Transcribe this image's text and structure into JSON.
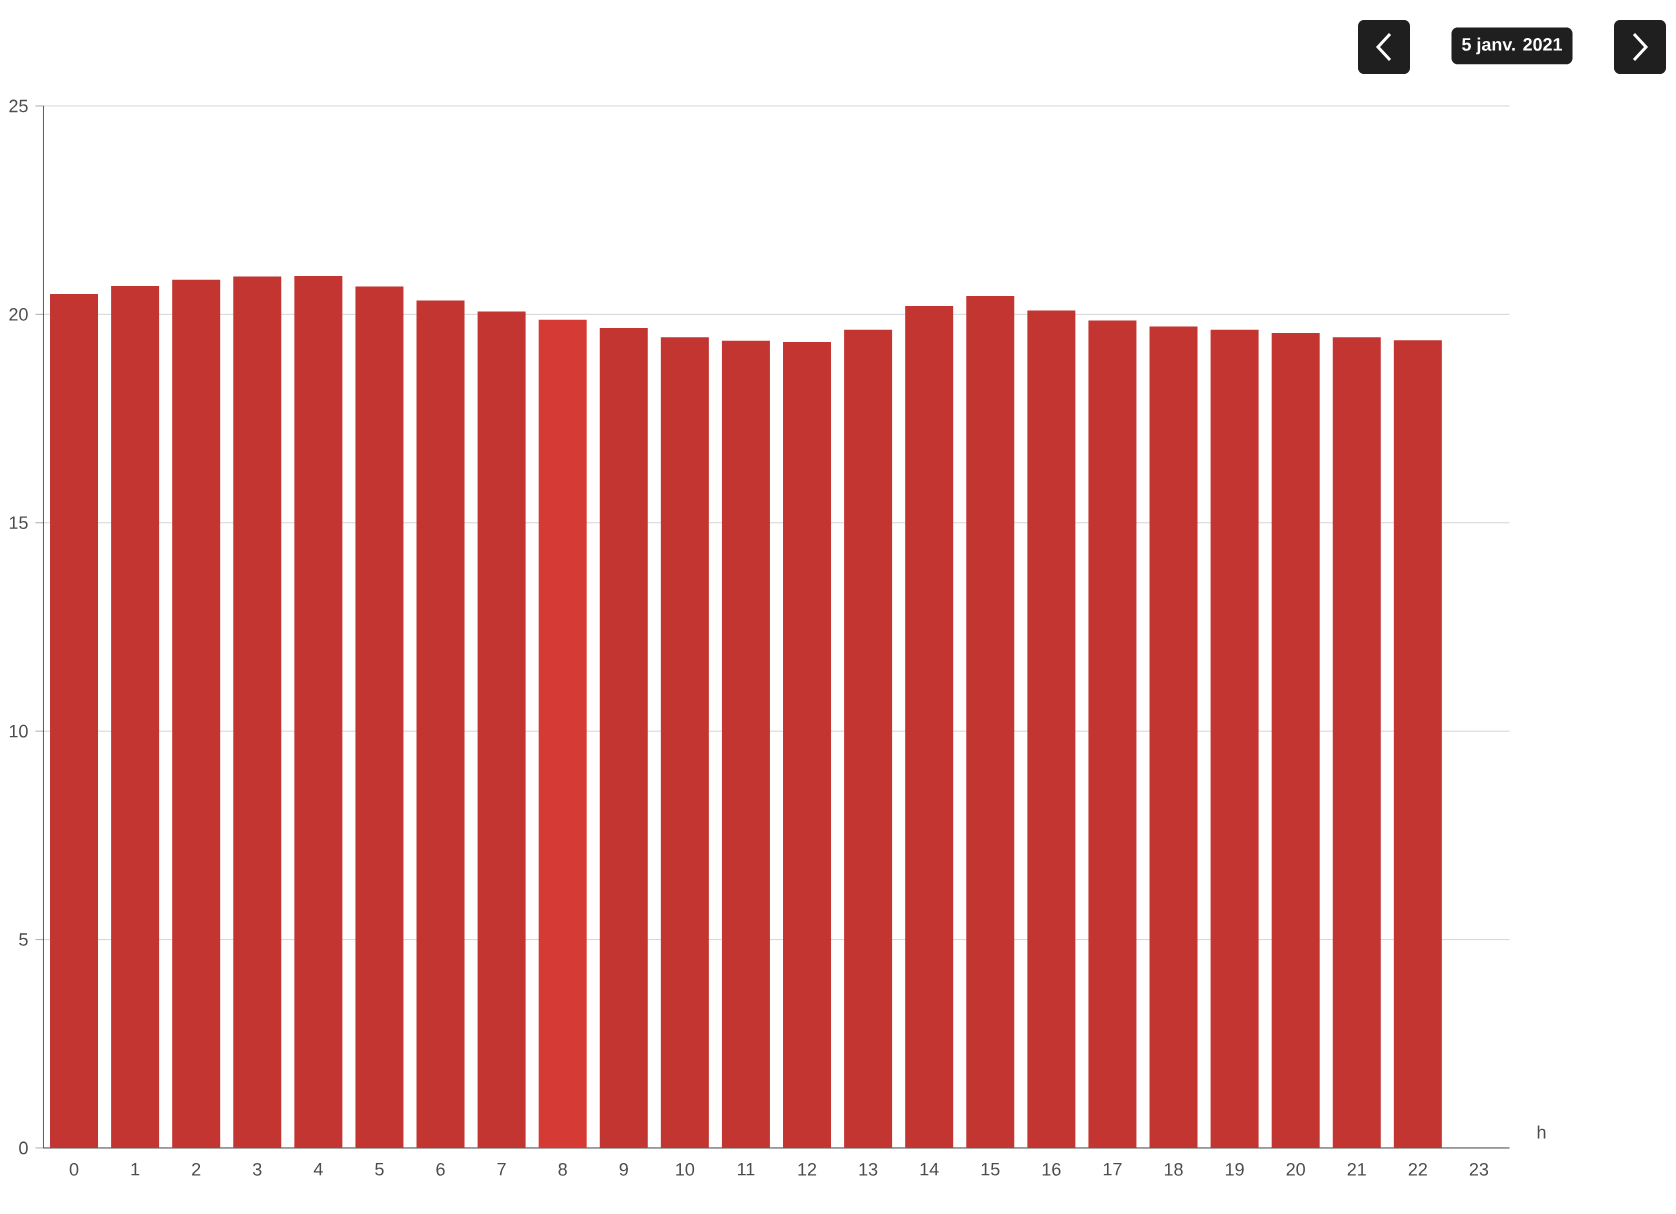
{
  "chart_data": {
    "type": "bar",
    "categories": [
      "0",
      "1",
      "2",
      "3",
      "4",
      "5",
      "6",
      "7",
      "8",
      "9",
      "10",
      "11",
      "12",
      "13",
      "14",
      "15",
      "16",
      "17",
      "18",
      "19",
      "20",
      "21",
      "22",
      "23"
    ],
    "values": [
      20.49,
      20.68,
      20.83,
      20.91,
      20.92,
      20.67,
      20.33,
      20.07,
      19.87,
      19.67,
      19.45,
      19.37,
      19.34,
      19.63,
      20.2,
      20.44,
      20.09,
      19.85,
      19.71,
      19.63,
      19.55,
      19.45,
      19.38,
      null
    ],
    "colors": [
      "#c23531",
      "#c23531",
      "#c23531",
      "#c23531",
      "#c23531",
      "#c23531",
      "#c23531",
      "#c23531",
      "#d63a34",
      "#c23531",
      "#c23531",
      "#c23531",
      "#c23531",
      "#c23531",
      "#c23531",
      "#c23531",
      "#c23531",
      "#c23531",
      "#c23531",
      "#c23531",
      "#c23531",
      "#c23531",
      "#c23531",
      "#c23531"
    ],
    "xlabel": "h",
    "ylim": [
      0,
      25
    ],
    "yticks": [
      0,
      5,
      10,
      15,
      20,
      25
    ],
    "grid": "y",
    "annotations": [
      "5 janv. 2021"
    ]
  }
}
